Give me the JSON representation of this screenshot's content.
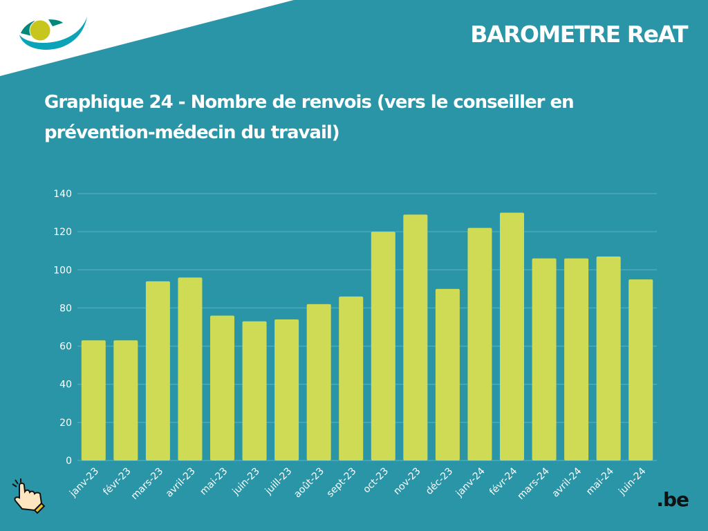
{
  "header": {
    "brand": "BAROMETRE ReAT",
    "be_logo": ".be"
  },
  "chart_data": {
    "type": "bar",
    "title": "Graphique 24 - Nombre de renvois (vers le conseiller en prévention-médecin du travail)",
    "categories": [
      "janv-23",
      "févr-23",
      "mars-23",
      "avril-23",
      "mai-23",
      "juin-23",
      "juill-23",
      "août-23",
      "sept-23",
      "oct-23",
      "nov-23",
      "déc-23",
      "janv-24",
      "févr-24",
      "mars-24",
      "avril-24",
      "mai-24",
      "juin-24"
    ],
    "values": [
      63,
      63,
      94,
      96,
      76,
      73,
      74,
      82,
      86,
      120,
      129,
      90,
      122,
      130,
      106,
      106,
      107,
      95
    ],
    "ylim": [
      0,
      140
    ],
    "yticks": [
      0,
      20,
      40,
      60,
      80,
      100,
      120,
      140
    ],
    "grid": true,
    "xlabel": "",
    "ylabel": "",
    "bar_color": "#d0db55",
    "background": "#2b95a8"
  }
}
